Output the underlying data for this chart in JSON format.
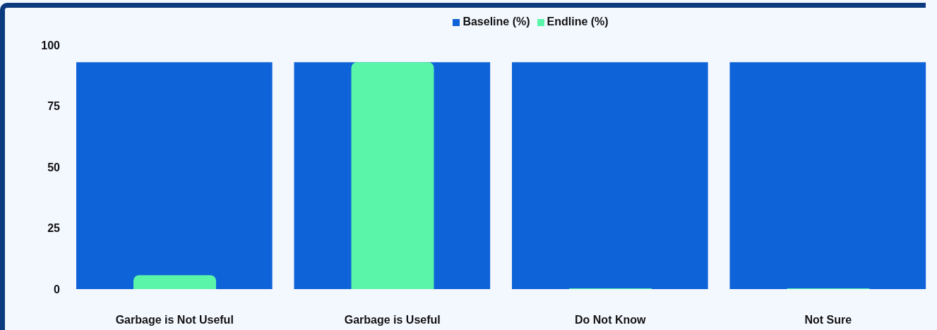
{
  "chart_data": {
    "type": "bar",
    "categories": [
      "Garbage is Not Useful",
      "Garbage is Useful",
      "Do Not Know",
      "Not Sure"
    ],
    "series": [
      {
        "name": "Baseline (%)",
        "color": "#0e63d8",
        "values": [
          93,
          93,
          93,
          93
        ]
      },
      {
        "name": "Endline (%)",
        "color": "#5bf5a9",
        "values": [
          5.7,
          93,
          0.3,
          0.3
        ]
      }
    ],
    "ylim": [
      0,
      100
    ],
    "yticks": [
      0,
      25,
      50,
      75,
      100
    ],
    "grid": false,
    "legend": "top"
  }
}
